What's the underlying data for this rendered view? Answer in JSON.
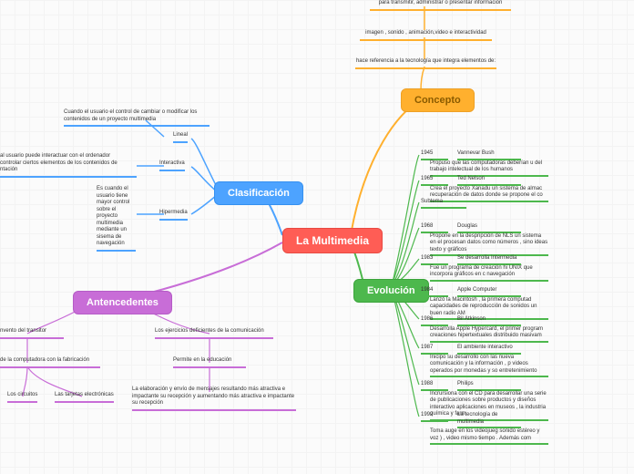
{
  "colors": {
    "center": "#ff5d55",
    "orange": "#ffb02e",
    "blue": "#4da3ff",
    "green": "#4db84d",
    "purple": "#c86dd7",
    "grid": "#f3f3f3",
    "bg": "#fbfbfb",
    "text": "#333333"
  },
  "nodes": {
    "center": "La Multimedia",
    "concepto": "Concepto",
    "clasificacion": "Clasificación",
    "evolucion": "Evolución",
    "antecedentes": "Antencedentes"
  },
  "concepto_branch": {
    "a": "para transmitir, administrar o presentar información",
    "b": "imagen , sonido , animación,video e interactividad",
    "c": "hace referencia a la tecnología que integra elementos de:"
  },
  "clasificacion_branch": {
    "lineal": "Lineal",
    "interactiva": "Interactiva",
    "hipermedia": "Hipermedia",
    "lineal_desc": "Cuando el usuario el control de cambiar o modificar los contenidos de un proyecto multimedia",
    "interactiva_desc": "al usuario puede interactuar con el ordenador\ncontrolar ciertos elementos de los contenidos de\nntación",
    "hipermedia_desc": "Es cuando el usuario tiene mayor control sobre el proyecto multimedia mediante un sisema de navegación"
  },
  "antecedentes_branch": {
    "a": "nvento del transitor",
    "b": "de la computadora con la fabricación",
    "c": "Los circuitos",
    "d": "Las tarjetas electrónicas",
    "e": "Los ejercicios deficientes de la comunicación",
    "f": "Permite en la educación",
    "g": "La elaboración y envío de mensajes resultando más atractiva e impactante su recepción y aumentando más atractiva e impactante su recepción"
  },
  "evolucion_rows": [
    {
      "yr": "1945",
      "who": "Vannevar Bush",
      "desc": "Propuso que las computadoras deberían u del trabajo intelectual de los humanos"
    },
    {
      "yr": "1965",
      "who": "Ted Nelson",
      "desc": "Crea el proyecto Xanadu un sistema de almac recuperación de datos donde se propone el co"
    },
    {
      "yr": "Subtema",
      "who": "",
      "desc": ""
    },
    {
      "yr": "1968",
      "who": "Douglas",
      "desc": "Propone en la despripción de NLS un sistema en el procesan datos como números , sino ideas texto y gráficos"
    },
    {
      "yr": "1983",
      "who": "Se desarrolla Intermedia",
      "desc": "Fue un programa de creación hi UNIX que incorpora gráficos en c navegación"
    },
    {
      "yr": "1984",
      "who": "Apple Computer",
      "desc": "Lanzó la Macintosh , la primera computad capacidades de reproducción de sonidos un buen radio AM"
    },
    {
      "yr": "1986",
      "who": "Bil Atkinson",
      "desc": "Desarrolla Apple Hypercard, el primer program creaciones hipertextuales distribuido masivam"
    },
    {
      "yr": "1987",
      "who": "El ambiente interactivo",
      "desc": "Inicipo su desarrollo con las nueva comunicación y la información , p videos operados por monedas y so entretenimiento"
    },
    {
      "yr": "1988",
      "who": "Philips",
      "desc": "Incrursiona con el CD para desarrollar una serie de publicaciones sobre productos y diseños interactivo aplicaciones en museos , la industria química y farm"
    },
    {
      "yr": "1992",
      "who": "La tecnología de multimedia",
      "desc": "Toma auge en los videojueg sonido estéreo y voz ) , video mismo tiempo . Además com"
    }
  ]
}
